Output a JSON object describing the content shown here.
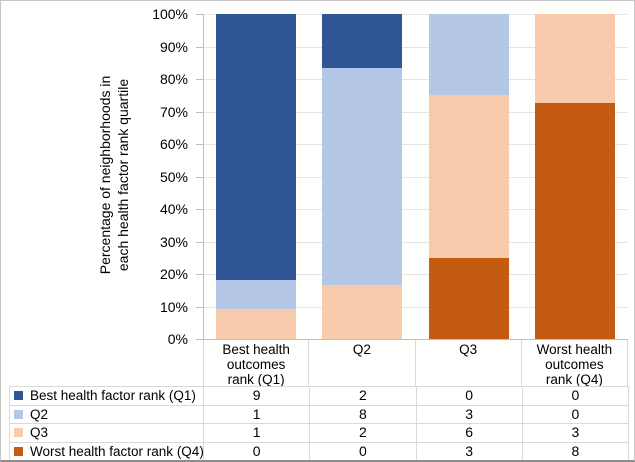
{
  "ui": {
    "colors": {
      "grid": "#e4e4e4",
      "axis": "#bfbfbf",
      "table_border": "#d9d9d9",
      "text": "#000000",
      "background": "#ffffff"
    }
  },
  "chart_data": {
    "type": "bar",
    "variant": "100%-stacked-column-with-data-table",
    "title": "",
    "ylabel": "Percentage of neighborhoods in each health factor rank quartile",
    "ylabel_lines": [
      "Percentage of neighborhoods in",
      "each health factor rank quartile"
    ],
    "categories": [
      "Best health outcomes rank (Q1)",
      "Q2",
      "Q3",
      "Worst health outcomes rank (Q4)"
    ],
    "category_label_lines": [
      [
        "Best health",
        "outcomes",
        "rank (Q1)"
      ],
      [
        "Q2"
      ],
      [
        "Q3"
      ],
      [
        "Worst health",
        "outcomes",
        "rank (Q4)"
      ]
    ],
    "series": [
      {
        "name": "Best health factor rank (Q1)",
        "color": "#2F5597",
        "values": [
          9,
          2,
          0,
          0
        ]
      },
      {
        "name": "Q2",
        "color": "#B4C7E7",
        "values": [
          1,
          8,
          3,
          0
        ]
      },
      {
        "name": "Q3",
        "color": "#F8CBAD",
        "values": [
          1,
          2,
          6,
          3
        ]
      },
      {
        "name": "Worst health factor rank (Q4)",
        "color": "#C55A11",
        "values": [
          0,
          0,
          3,
          8
        ]
      }
    ],
    "stack_order_bottom_to_top": [
      "Worst health factor rank (Q4)",
      "Q3",
      "Q2",
      "Best health factor rank (Q1)"
    ],
    "yticks": [
      "100%",
      "90%",
      "80%",
      "70%",
      "60%",
      "50%",
      "40%",
      "30%",
      "20%",
      "10%",
      "0%"
    ],
    "ylim": [
      0,
      100
    ],
    "grid": "horizontal",
    "legend_position": "bottom-table"
  }
}
